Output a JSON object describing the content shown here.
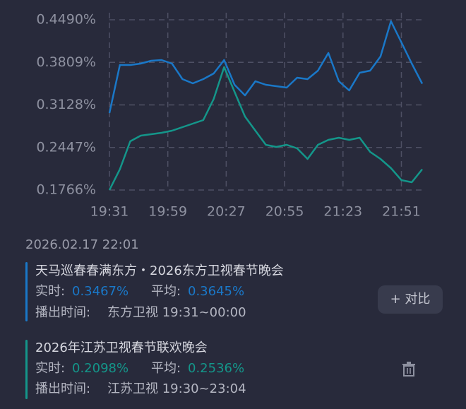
{
  "chart_data": {
    "type": "line",
    "x": [
      "19:31",
      "19:36",
      "19:41",
      "19:46",
      "19:51",
      "19:56",
      "20:01",
      "20:06",
      "20:11",
      "20:16",
      "20:21",
      "20:26",
      "20:31",
      "20:36",
      "20:41",
      "20:46",
      "20:51",
      "20:56",
      "21:01",
      "21:06",
      "21:11",
      "21:16",
      "21:21",
      "21:26",
      "21:31",
      "21:36",
      "21:41",
      "21:46",
      "21:51",
      "21:56",
      "22:01"
    ],
    "xlim": [
      "19:31",
      "22:01"
    ],
    "xticks": [
      "19:31",
      "19:59",
      "20:27",
      "20:55",
      "21:23",
      "21:51"
    ],
    "ylim": [
      0.1766,
      0.449
    ],
    "yticks": [
      {
        "value": 0.1766,
        "label": "0.1766%"
      },
      {
        "value": 0.2447,
        "label": "0.2447%"
      },
      {
        "value": 0.3128,
        "label": "0.3128%"
      },
      {
        "value": 0.3809,
        "label": "0.3809%"
      },
      {
        "value": 0.449,
        "label": "0.4490%"
      }
    ],
    "grid": true,
    "series": [
      {
        "name": "天马巡春春满东方・2026东方卫视春节晚会",
        "color": "#1a78c8",
        "values": [
          0.2998,
          0.3767,
          0.3767,
          0.3789,
          0.3834,
          0.3846,
          0.3789,
          0.3541,
          0.3473,
          0.3541,
          0.3631,
          0.3846,
          0.345,
          0.3281,
          0.3507,
          0.345,
          0.3428,
          0.3405,
          0.3563,
          0.3541,
          0.3676,
          0.3959,
          0.3507,
          0.336,
          0.3642,
          0.3676,
          0.3902,
          0.4467,
          0.4128,
          0.3789,
          0.3467
        ]
      },
      {
        "name": "2026年江苏卫视春节联欢晚会",
        "color": "#14968a",
        "values": [
          0.1766,
          0.2098,
          0.2546,
          0.2636,
          0.2659,
          0.2682,
          0.2715,
          0.2772,
          0.2828,
          0.2885,
          0.3224,
          0.3733,
          0.3337,
          0.2942,
          0.2715,
          0.2489,
          0.2455,
          0.2489,
          0.2433,
          0.2263,
          0.2489,
          0.2568,
          0.2602,
          0.2568,
          0.2602,
          0.2376,
          0.2263,
          0.2116,
          0.1924,
          0.189,
          0.2098
        ]
      }
    ]
  },
  "info": {
    "timestamp": "2026.02.17 22:01",
    "items": [
      {
        "current_label": "实时:",
        "current": "0.3467%",
        "average_label": "平均:",
        "average": "0.3645%",
        "broadcast_label": "播出时间:",
        "broadcast": "东方卫视 19:31~00:00"
      },
      {
        "current_label": "实时:",
        "current": "0.2098%",
        "average_label": "平均:",
        "average": "0.2536%",
        "broadcast_label": "播出时间:",
        "broadcast": "江苏卫视 19:30~23:04"
      }
    ],
    "compare_button": "+ 对比"
  }
}
